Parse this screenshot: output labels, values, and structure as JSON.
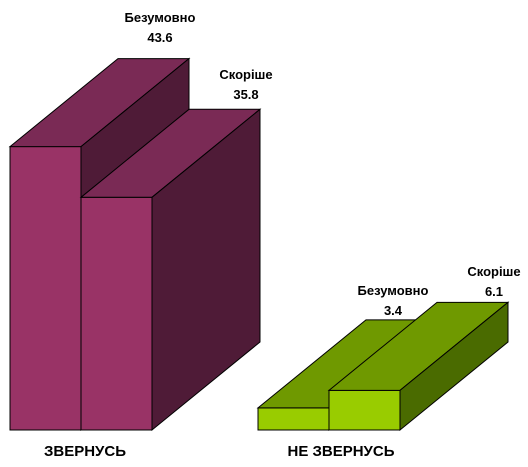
{
  "chart_data": {
    "type": "bar",
    "style": "3d-stacked-columns",
    "categories": [
      "ЗВЕРНУСЬ",
      "НЕ ЗВЕРНУСЬ"
    ],
    "groups": [
      {
        "category": "ЗВЕРНУСЬ",
        "bars": [
          {
            "label": "Безумовно",
            "value": 43.6,
            "value_text": "43.6"
          },
          {
            "label": "Скоріше",
            "value": 35.8,
            "value_text": "35.8"
          }
        ],
        "colors": {
          "front": "#993366",
          "top": "#7a2a55",
          "side": "#4f1b37"
        }
      },
      {
        "category": "НЕ ЗВЕРНУСЬ",
        "bars": [
          {
            "label": "Безумовно",
            "value": 3.4,
            "value_text": "3.4"
          },
          {
            "label": "Скоріше",
            "value": 6.1,
            "value_text": "6.1"
          }
        ],
        "colors": {
          "front": "#99cc00",
          "top": "#6f9900",
          "side": "#4a6b00"
        }
      }
    ],
    "title": "",
    "xlabel": "",
    "ylabel": "",
    "legend": "none",
    "grid": false
  }
}
